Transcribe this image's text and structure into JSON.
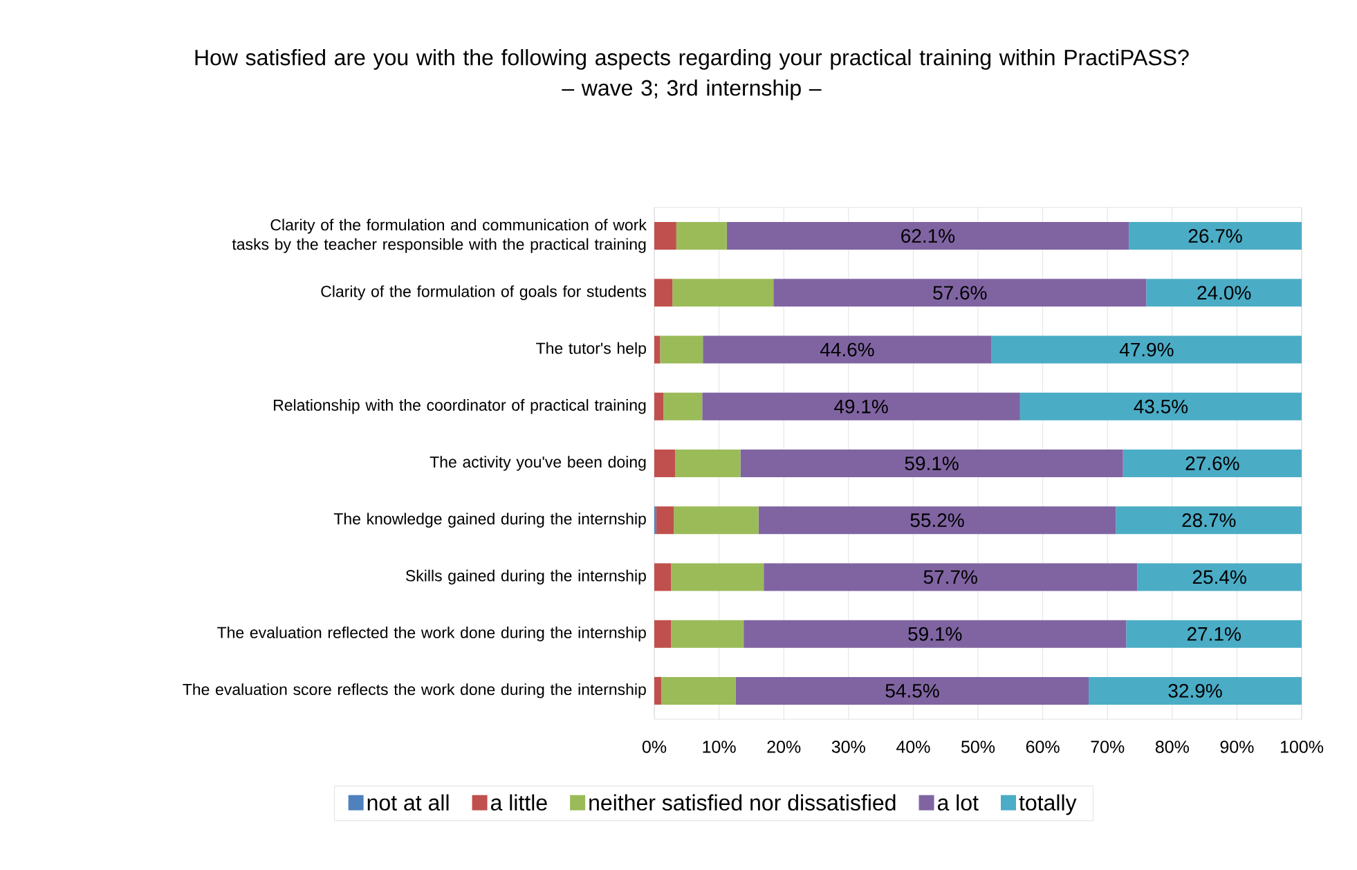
{
  "chart_data": {
    "type": "bar",
    "orientation": "horizontal",
    "stacked": true,
    "title": "How satisfied are you with the following aspects regarding your practical training within PractiPASS?",
    "subtitle": "– wave 3; 3rd internship –",
    "categories": [
      "Clarity of the formulation and communication of work tasks by the teacher responsible with the practical training",
      "Clarity of the formulation of goals for students",
      "The tutor's help",
      "Relationship with the coordinator of practical training",
      "The activity you've been doing",
      "The knowledge gained during the internship",
      "Skills gained during the internship",
      "The evaluation reflected the work done during the internship",
      "The evaluation score reflects the work done during the internship"
    ],
    "series": [
      {
        "name": "not at all",
        "color": "#4f81bd",
        "values": [
          0,
          0,
          0,
          0,
          0,
          0.3,
          0,
          0,
          0
        ]
      },
      {
        "name": "a little",
        "color": "#c0504d",
        "values": [
          3.4,
          2.8,
          0.9,
          1.4,
          3.2,
          2.7,
          2.6,
          2.6,
          1.1
        ]
      },
      {
        "name": "neither satisfied nor dissatisfied",
        "color": "#9bbb59",
        "values": [
          7.8,
          15.6,
          6.6,
          6.0,
          10.1,
          13.1,
          14.3,
          11.2,
          11.5
        ]
      },
      {
        "name": "a lot",
        "color": "#8064a2",
        "values": [
          62.1,
          57.6,
          44.6,
          49.1,
          59.1,
          55.2,
          57.7,
          59.1,
          54.5
        ],
        "value_labels": [
          "62.1%",
          "57.6%",
          "44.6%",
          "49.1%",
          "59.1%",
          "55.2%",
          "57.7%",
          "59.1%",
          "54.5%"
        ]
      },
      {
        "name": "totally",
        "color": "#4bacc6",
        "values": [
          26.7,
          24.0,
          47.9,
          43.5,
          27.6,
          28.7,
          25.4,
          27.1,
          32.9
        ],
        "value_labels": [
          "26.7%",
          "24.0%",
          "47.9%",
          "43.5%",
          "27.6%",
          "28.7%",
          "25.4%",
          "27.1%",
          "32.9%"
        ]
      }
    ],
    "xlim": [
      0,
      100
    ],
    "xticks": [
      {
        "value": 0,
        "label": "0%"
      },
      {
        "value": 10,
        "label": "10%"
      },
      {
        "value": 20,
        "label": "20%"
      },
      {
        "value": 30,
        "label": "30%"
      },
      {
        "value": 40,
        "label": "40%"
      },
      {
        "value": 50,
        "label": "50%"
      },
      {
        "value": 60,
        "label": "60%"
      },
      {
        "value": 70,
        "label": "70%"
      },
      {
        "value": 80,
        "label": "80%"
      },
      {
        "value": 90,
        "label": "90%"
      },
      {
        "value": 100,
        "label": "100%"
      }
    ],
    "grid": "x",
    "legend": "bottom"
  }
}
